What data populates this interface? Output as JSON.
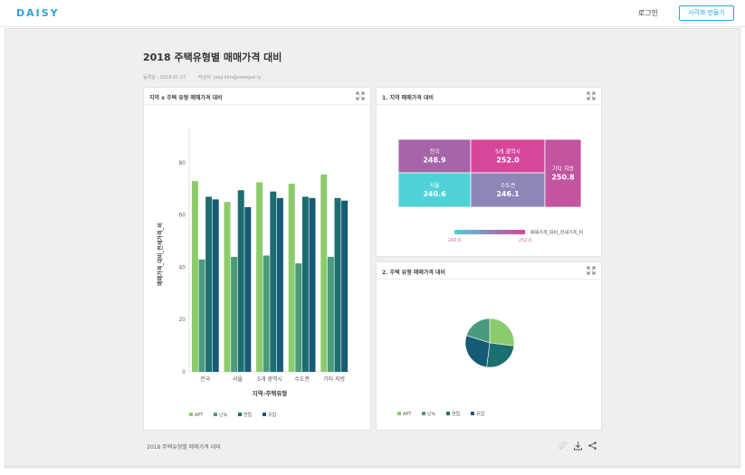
{
  "app": {
    "logo": "DAISY",
    "login_label": "로그인",
    "start_label": "시각화 만들기"
  },
  "page": {
    "title": "2018 주택유형별 매매가격 대비",
    "registered": "등록일 : 2019.01.07",
    "author": "작성자: jooji.kim@newspel.ly"
  },
  "cards": {
    "bar": {
      "title": "지역 x 주택 유형 매매가격 대비"
    },
    "treemap": {
      "title": "1. 지역 매매가격 대비"
    },
    "pie": {
      "title": "2. 주택 유형 매매가격 대비"
    }
  },
  "footer": {
    "title": "2018 주택유형별 매매가격 대비"
  },
  "colors": {
    "APT": "#8ccb6d",
    "난녹": "#4a9a7e",
    "연립": "#1b6f6e",
    "유압": "#175a76",
    "accent": "#2aa4de"
  },
  "chart_data": [
    {
      "type": "bar",
      "categories": [
        "전국",
        "서울",
        "5개 광역시",
        "수도권",
        "기타 지방"
      ],
      "series": [
        {
          "name": "APT",
          "values": [
            73,
            65,
            72.5,
            72,
            75.5
          ]
        },
        {
          "name": "난녹",
          "values": [
            43,
            44,
            44.5,
            41.5,
            44
          ]
        },
        {
          "name": "연립",
          "values": [
            67,
            69.5,
            69,
            67,
            66.5
          ]
        },
        {
          "name": "유압",
          "values": [
            66,
            63,
            66.5,
            66.5,
            65.5
          ]
        }
      ],
      "ylabel": "매매가격_대비_전세가격_비",
      "xlabel": "지역-주택유형",
      "yticks": [
        0,
        20,
        40,
        60,
        80
      ],
      "ylim": [
        0,
        90
      ],
      "legend": "bottom"
    },
    {
      "type": "heatmap",
      "cells": [
        {
          "label": "전국",
          "value": "248.9",
          "color": "#a665a8"
        },
        {
          "label": "5개 광역시",
          "value": "252.0",
          "color": "#d6479b"
        },
        {
          "label": "서울",
          "value": "240.6",
          "color": "#4fd2d6"
        },
        {
          "label": "수도권",
          "value": "246.1",
          "color": "#8f85b7"
        },
        {
          "label": "기타 지방",
          "value": "250.8",
          "color": "#c354a0"
        }
      ],
      "legend_label": "매매가격_대비_전세가격_비",
      "legend_min": "240.6",
      "legend_max": "252.0"
    },
    {
      "type": "pie",
      "slices": [
        {
          "name": "APT",
          "value": 27
        },
        {
          "name": "연립",
          "value": 25
        },
        {
          "name": "유압",
          "value": 28
        },
        {
          "name": "난녹",
          "value": 20
        }
      ],
      "legend": "bottom"
    }
  ],
  "pie_legend": [
    "APT",
    "난녹",
    "연립",
    "유압"
  ],
  "bar_legend": [
    "APT",
    "난녹",
    "연립",
    "유압"
  ]
}
